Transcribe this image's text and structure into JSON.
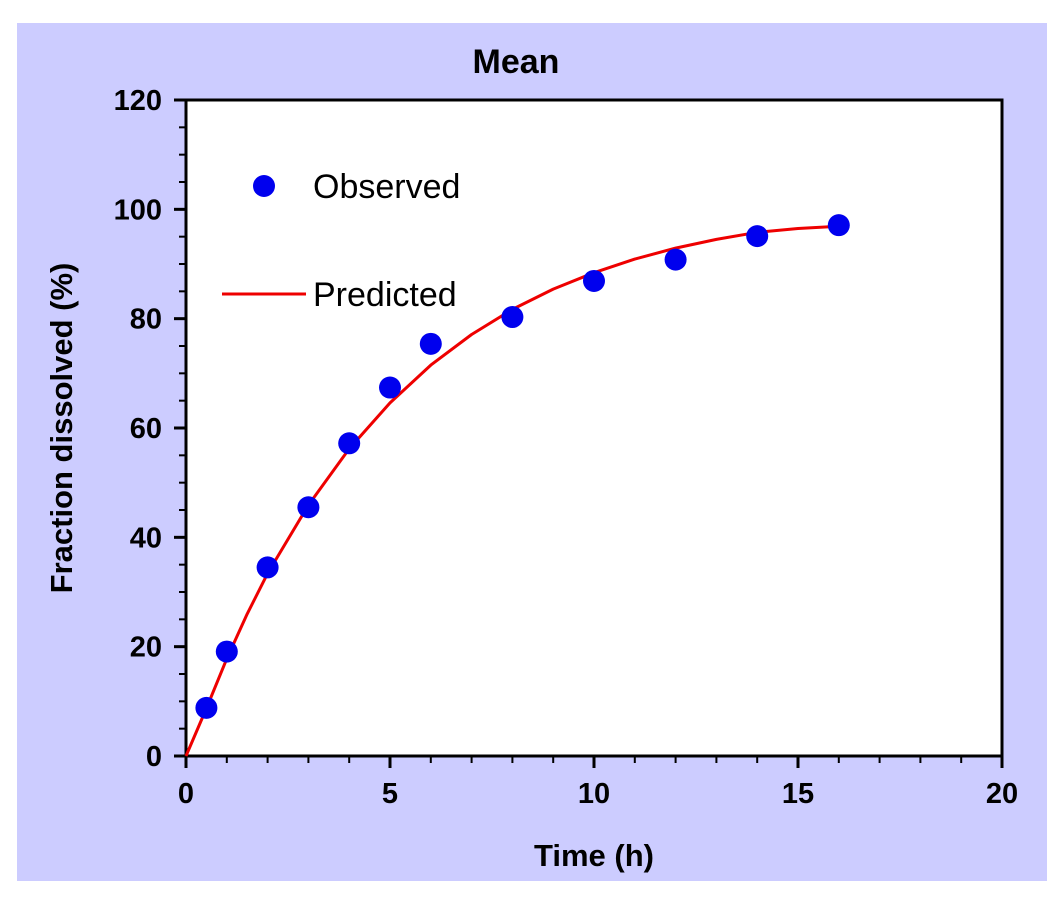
{
  "colors": {
    "background": "#ccccff",
    "plot_area": "#ffffff",
    "observed": "#0000ee",
    "predicted": "#ee0000",
    "axis": "#000000"
  },
  "chart_data": {
    "type": "scatter",
    "title": "Mean",
    "xlabel": "Time (h)",
    "ylabel": "Fraction dissolved (%)",
    "xlim": [
      0,
      20
    ],
    "ylim": [
      0,
      120
    ],
    "xticks": [
      0,
      5,
      10,
      15,
      20
    ],
    "yticks": [
      0,
      20,
      40,
      60,
      80,
      100,
      120
    ],
    "grid": false,
    "legend_position": "top-left",
    "series": [
      {
        "name": "Observed",
        "kind": "scatter",
        "marker": "circle",
        "x": [
          0.5,
          1,
          2,
          3,
          4,
          5,
          6,
          8,
          10,
          12,
          14,
          16
        ],
        "y": [
          8.8,
          19.1,
          34.5,
          45.5,
          57.2,
          67.4,
          75.4,
          80.3,
          86.9,
          90.8,
          95.1,
          97.1
        ]
      },
      {
        "name": "Predicted",
        "kind": "line",
        "x": [
          0,
          0.5,
          1,
          1.5,
          2,
          3,
          4,
          5,
          6,
          7,
          8,
          9,
          10,
          11,
          12,
          13,
          14,
          15,
          16
        ],
        "y": [
          0,
          8.7,
          17.8,
          26.0,
          33.4,
          45.9,
          56.2,
          64.6,
          71.5,
          77.1,
          81.7,
          85.4,
          88.4,
          90.9,
          92.9,
          94.5,
          95.8,
          96.5,
          96.9
        ]
      }
    ]
  }
}
